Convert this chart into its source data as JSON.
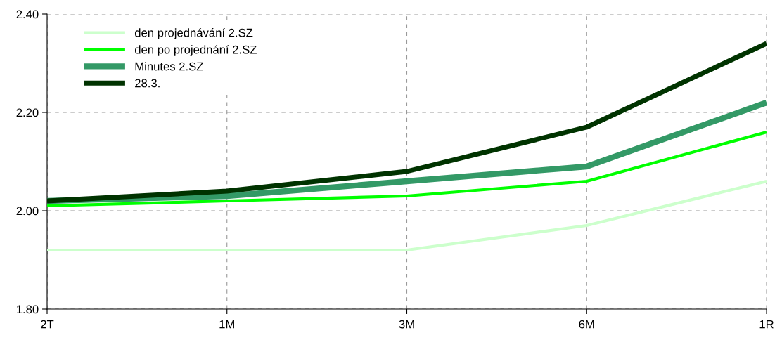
{
  "chart_data": {
    "type": "line",
    "categories": [
      "2T",
      "1M",
      "3M",
      "6M",
      "1R"
    ],
    "ylim": [
      1.8,
      2.4
    ],
    "yticks": [
      {
        "value": 1.8,
        "label": "1.80"
      },
      {
        "value": 2.0,
        "label": "2.00"
      },
      {
        "value": 2.2,
        "label": "2.20"
      },
      {
        "value": 2.4,
        "label": "2.40"
      }
    ],
    "grid": true,
    "legend": "top left",
    "marker": "none",
    "line_style": "solid",
    "series": [
      {
        "name": "den projednávání 2.SZ",
        "color": "#ccffcc",
        "values": [
          1.92,
          1.92,
          1.92,
          1.97,
          2.06
        ]
      },
      {
        "name": "den po projednání 2.SZ",
        "color": "#00ff00",
        "values": [
          2.01,
          2.02,
          2.03,
          2.06,
          2.16
        ]
      },
      {
        "name": "Minutes 2.SZ",
        "color": "#339966",
        "values": [
          2.02,
          2.03,
          2.06,
          2.09,
          2.22
        ]
      },
      {
        "name": "28.3.",
        "color": "#003300",
        "values": [
          2.02,
          2.04,
          2.08,
          2.17,
          2.34
        ]
      }
    ]
  }
}
